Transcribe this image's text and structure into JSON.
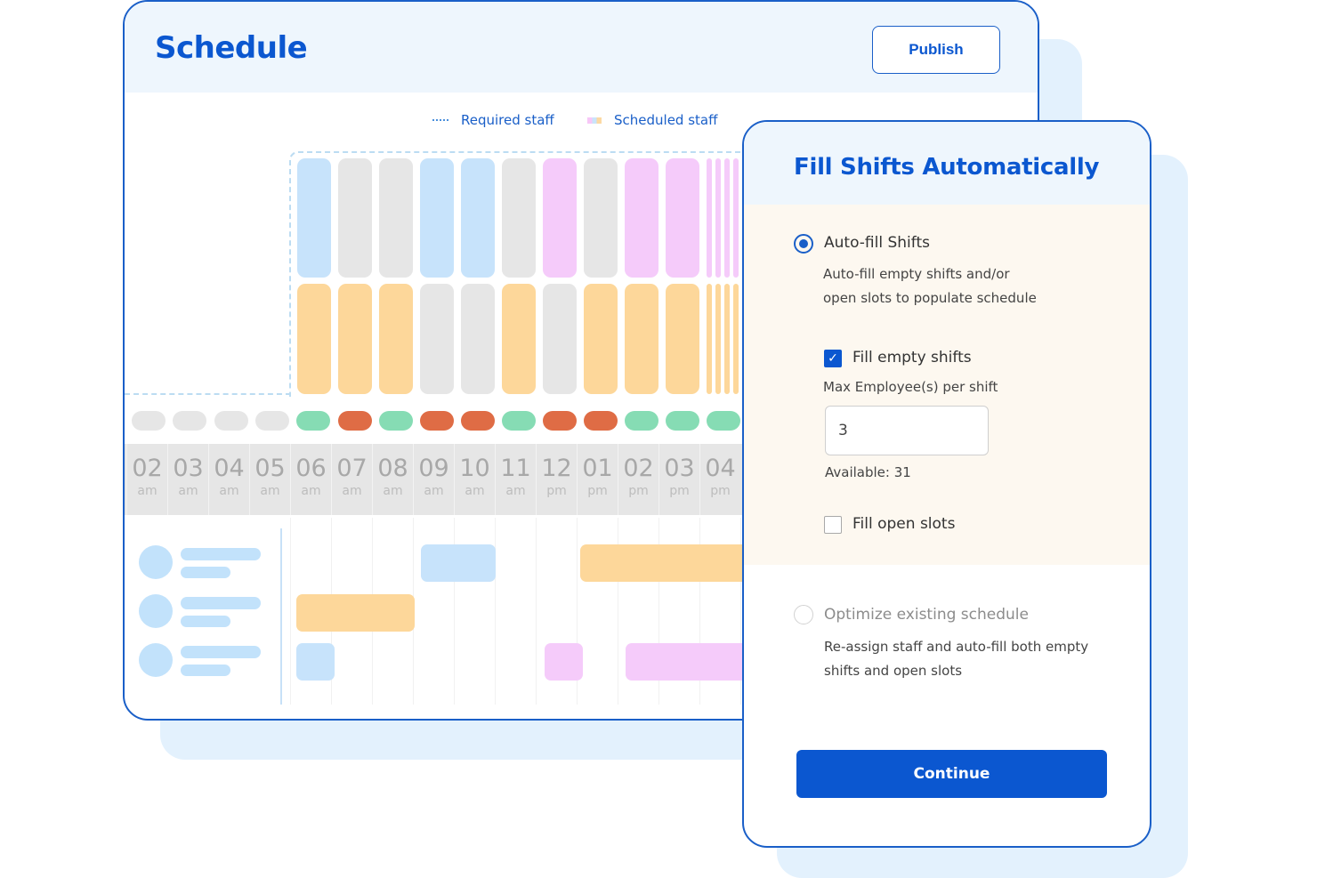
{
  "schedule": {
    "title": "Schedule",
    "publish_label": "Publish",
    "legend": {
      "required": "Required staff",
      "scheduled": "Scheduled staff"
    },
    "timeline": [
      {
        "hour": "02",
        "meridiem": "am"
      },
      {
        "hour": "03",
        "meridiem": "am"
      },
      {
        "hour": "04",
        "meridiem": "am"
      },
      {
        "hour": "05",
        "meridiem": "am"
      },
      {
        "hour": "06",
        "meridiem": "am"
      },
      {
        "hour": "07",
        "meridiem": "am"
      },
      {
        "hour": "08",
        "meridiem": "am"
      },
      {
        "hour": "09",
        "meridiem": "am"
      },
      {
        "hour": "10",
        "meridiem": "am"
      },
      {
        "hour": "11",
        "meridiem": "am"
      },
      {
        "hour": "12",
        "meridiem": "pm"
      },
      {
        "hour": "01",
        "meridiem": "pm"
      },
      {
        "hour": "02",
        "meridiem": "pm"
      },
      {
        "hour": "03",
        "meridiem": "pm"
      },
      {
        "hour": "04",
        "meridiem": "pm"
      }
    ]
  },
  "colors": {
    "brand": "#0b57d0",
    "blue": "#c7e3fb",
    "grey": "#e6e6e6",
    "pink": "#f5cbfa",
    "orange": "#fdd79a",
    "green": "#86dcb4",
    "red": "#df6c45"
  },
  "dialog": {
    "title": "Fill Shifts Automatically",
    "autofill": {
      "label": "Auto-fill Shifts",
      "selected": true,
      "desc_line1": "Auto-fill empty shifts and/or",
      "desc_line2": "open slots to populate schedule",
      "fill_empty": {
        "label": "Fill empty shifts",
        "checked": true
      },
      "max_label": "Max Employee(s) per shift",
      "max_value": "3",
      "available": "Available: 31",
      "fill_open": {
        "label": "Fill open slots",
        "checked": false
      }
    },
    "optimize": {
      "label": "Optimize existing schedule",
      "selected": false,
      "desc_line1": "Re-assign staff and auto-fill both empty",
      "desc_line2": "shifts and open slots"
    },
    "continue_label": "Continue"
  }
}
